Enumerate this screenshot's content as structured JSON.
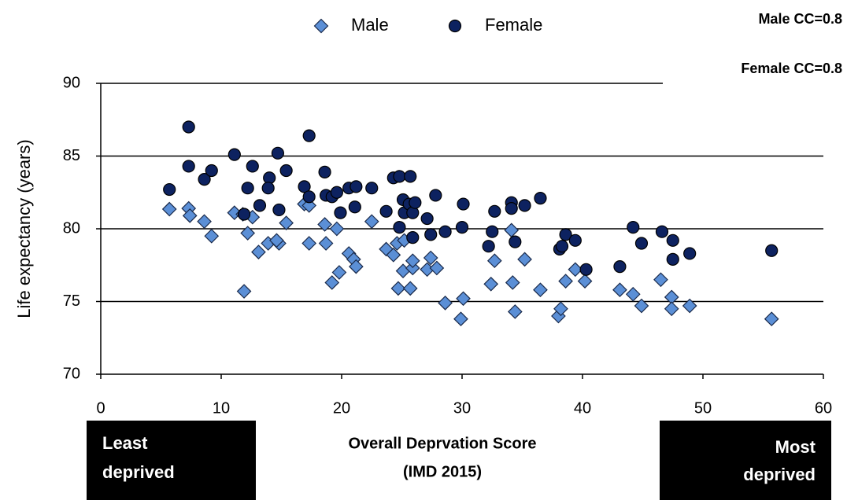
{
  "chart_data": {
    "type": "scatter",
    "ylabel": "Life expectancy (years)",
    "xlabel": [
      "Overall Deprvation Score",
      "(IMD 2015)"
    ],
    "annotations": [
      "Male CC=0.8",
      "Female CC=0.8"
    ],
    "left_box": [
      "Least",
      "deprived"
    ],
    "right_box": [
      "Most",
      "deprived"
    ],
    "xlim": [
      0,
      60
    ],
    "ylim": [
      70,
      90
    ],
    "xticks": [
      0,
      10,
      20,
      30,
      40,
      50,
      60
    ],
    "yticks": [
      70,
      75,
      80,
      85,
      90
    ],
    "grid": true,
    "legend": "top",
    "series": [
      {
        "name": "Male",
        "color": "#5b8fd6",
        "marker": "diamond",
        "x": [
          5.7,
          7.3,
          7.4,
          8.6,
          9.2,
          11.1,
          11.8,
          12.2,
          12.6,
          11.9,
          13.1,
          13.9,
          14.8,
          14.6,
          15.4,
          16.9,
          17.3,
          17.3,
          18.6,
          18.7,
          19.6,
          19.2,
          19.8,
          20.6,
          21.0,
          21.2,
          22.5,
          23.7,
          24.3,
          24.6,
          25.2,
          24.7,
          25.1,
          25.7,
          25.9,
          25.9,
          27.1,
          27.4,
          27.9,
          28.6,
          30.1,
          29.9,
          32.4,
          32.7,
          34.1,
          34.2,
          34.4,
          35.2,
          36.5,
          38.0,
          38.2,
          38.6,
          39.4,
          40.2,
          43.1,
          44.2,
          44.9,
          46.5,
          47.4,
          47.4,
          48.9,
          55.7
        ],
        "values": [
          81.35,
          81.4,
          80.9,
          80.5,
          79.5,
          81.1,
          81.0,
          79.7,
          80.8,
          75.7,
          78.4,
          79.0,
          79.0,
          79.2,
          80.4,
          81.7,
          81.6,
          79.0,
          80.3,
          79.0,
          80.0,
          76.3,
          77.0,
          78.3,
          77.9,
          77.4,
          80.5,
          78.6,
          78.2,
          79.0,
          79.2,
          75.9,
          77.1,
          75.9,
          77.3,
          77.8,
          77.2,
          78.0,
          77.3,
          74.9,
          75.2,
          73.8,
          76.2,
          77.8,
          79.9,
          76.3,
          74.3,
          77.9,
          75.8,
          74.0,
          74.5,
          76.4,
          77.2,
          76.4,
          75.8,
          75.5,
          74.7,
          76.5,
          75.3,
          74.5,
          74.7,
          73.8
        ]
      },
      {
        "name": "Female",
        "color": "#0d2260",
        "marker": "circle",
        "x": [
          5.7,
          7.3,
          7.3,
          8.6,
          9.2,
          11.1,
          11.9,
          12.2,
          12.6,
          13.2,
          14.0,
          13.9,
          14.7,
          14.8,
          15.4,
          16.9,
          17.3,
          17.3,
          18.6,
          18.7,
          19.2,
          19.6,
          19.9,
          20.6,
          21.2,
          21.1,
          22.5,
          23.7,
          24.3,
          24.8,
          24.8,
          25.1,
          25.2,
          25.7,
          25.6,
          25.9,
          25.9,
          26.1,
          27.1,
          27.4,
          27.8,
          28.6,
          30.1,
          30.0,
          32.2,
          32.5,
          32.7,
          34.1,
          34.1,
          34.4,
          35.2,
          36.5,
          38.1,
          38.3,
          38.6,
          39.4,
          40.3,
          43.1,
          44.2,
          44.9,
          46.6,
          47.5,
          47.5,
          48.9,
          55.7
        ],
        "values": [
          82.7,
          87.0,
          84.3,
          83.4,
          84.0,
          85.1,
          81.0,
          82.8,
          84.3,
          81.6,
          83.5,
          82.8,
          85.2,
          81.3,
          84.0,
          82.9,
          86.4,
          82.2,
          83.9,
          82.3,
          82.2,
          82.5,
          81.1,
          82.8,
          82.9,
          81.5,
          82.8,
          81.2,
          83.5,
          83.6,
          80.1,
          82.0,
          81.1,
          83.6,
          81.7,
          79.4,
          81.1,
          81.8,
          80.7,
          79.6,
          82.3,
          79.8,
          81.7,
          80.1,
          78.8,
          79.8,
          81.2,
          81.8,
          81.4,
          79.1,
          81.6,
          82.1,
          78.6,
          78.8,
          79.6,
          79.2,
          77.2,
          77.4,
          80.1,
          79.0,
          79.8,
          79.2,
          77.9,
          78.3,
          78.5
        ]
      }
    ]
  }
}
